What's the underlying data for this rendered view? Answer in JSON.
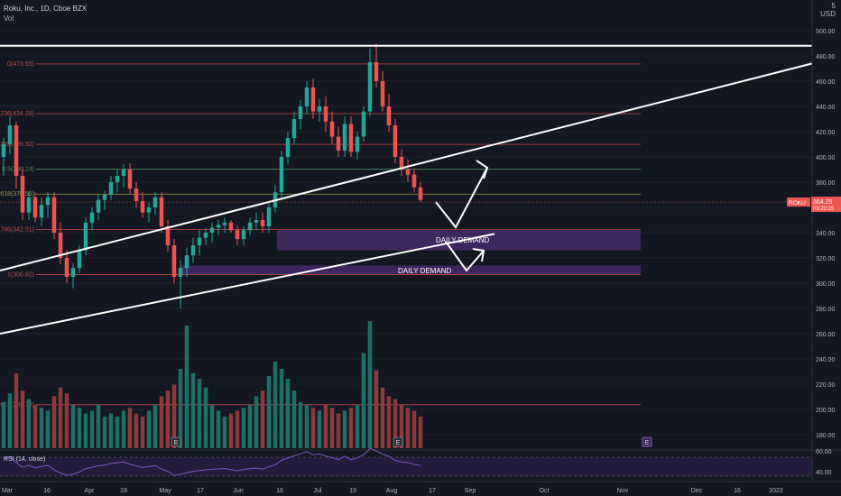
{
  "header": {
    "title": "Roku, Inc., 1D, Cboe BZX",
    "vol_label": "Vol"
  },
  "scale_top": {
    "digit": "5",
    "currency": "USD"
  },
  "colors": {
    "bg": "#131722",
    "up": "#26a69a",
    "down": "#ef5350",
    "vol_up": "#1f6f68",
    "vol_down": "#8c3a3a",
    "fib_red": "#c44a4a",
    "fib_green": "#4f8a5e",
    "fib_yellow": "#9e9a4a",
    "demand_zone": "#4a2a6e",
    "rsi_line": "#7e57c2",
    "rsi_band": "#2a1f45",
    "grid": "#1e222d",
    "text": "#b2b5be",
    "white": "#ffffff"
  },
  "chart_data": {
    "type": "candlestick",
    "symbol": "ROKU",
    "last_price": "364.25",
    "countdown": "03:23:25",
    "price_axis": {
      "ticks": [
        "500.00",
        "480.00",
        "460.00",
        "440.00",
        "420.00",
        "400.00",
        "380.00",
        "360.00",
        "340.00",
        "320.00",
        "300.00",
        "280.00",
        "260.00",
        "240.00",
        "220.00",
        "200.00",
        "180.00"
      ],
      "range": [
        174,
        505
      ]
    },
    "rsi": {
      "label": "RSI (14, close)",
      "ticks": [
        "60.00",
        "40.00"
      ]
    },
    "time_axis": [
      "Mar",
      "16",
      "Apr",
      "19",
      "May",
      "17",
      "Jun",
      "16",
      "Jul",
      "19",
      "Aug",
      "17",
      "Sep",
      "Oct",
      "Nov",
      "Dec",
      "16",
      "2022"
    ],
    "fib_levels": [
      {
        "label": "0(473.65)",
        "value": 473.65,
        "color": "red"
      },
      {
        "label": "0.236(434.28)",
        "value": 434.28,
        "color": "red"
      },
      {
        "label": "0.382(409.92)",
        "value": 409.92,
        "color": "red"
      },
      {
        "label": "0.5(390.24)",
        "value": 390.24,
        "color": "green"
      },
      {
        "label": "0.618(370.55)",
        "value": 370.55,
        "color": "yellow"
      },
      {
        "label": "0.786(342.51)",
        "value": 342.51,
        "color": "red"
      },
      {
        "label": "1(306.82)",
        "value": 306.82,
        "color": "red"
      },
      {
        "label": "1.618(203.72)",
        "value": 203.72,
        "color": "red"
      }
    ],
    "annotations": [
      "DAILY DEMAND",
      "DAILY DEMAND"
    ],
    "event_badges": [
      "E",
      "E",
      "E"
    ],
    "candles": [
      [
        400,
        415,
        385,
        410
      ],
      [
        410,
        432,
        402,
        425
      ],
      [
        425,
        428,
        375,
        385
      ],
      [
        385,
        392,
        350,
        356
      ],
      [
        356,
        372,
        350,
        368
      ],
      [
        368,
        372,
        348,
        352
      ],
      [
        352,
        368,
        345,
        362
      ],
      [
        362,
        372,
        352,
        368
      ],
      [
        368,
        372,
        335,
        340
      ],
      [
        340,
        348,
        315,
        320
      ],
      [
        320,
        326,
        300,
        305
      ],
      [
        305,
        316,
        296,
        312
      ],
      [
        312,
        330,
        308,
        326
      ],
      [
        326,
        352,
        322,
        348
      ],
      [
        348,
        360,
        342,
        356
      ],
      [
        356,
        370,
        350,
        366
      ],
      [
        366,
        373,
        358,
        370
      ],
      [
        370,
        385,
        366,
        380
      ],
      [
        380,
        390,
        372,
        385
      ],
      [
        385,
        394,
        376,
        390
      ],
      [
        390,
        395,
        370,
        375
      ],
      [
        375,
        380,
        360,
        365
      ],
      [
        365,
        372,
        352,
        356
      ],
      [
        356,
        364,
        348,
        360
      ],
      [
        360,
        372,
        354,
        368
      ],
      [
        368,
        372,
        340,
        345
      ],
      [
        345,
        350,
        325,
        330
      ],
      [
        330,
        335,
        300,
        305
      ],
      [
        305,
        318,
        280,
        312
      ],
      [
        312,
        328,
        305,
        322
      ],
      [
        322,
        336,
        316,
        330
      ],
      [
        330,
        342,
        322,
        336
      ],
      [
        336,
        344,
        330,
        340
      ],
      [
        340,
        348,
        332,
        344
      ],
      [
        344,
        350,
        338,
        346
      ],
      [
        346,
        352,
        340,
        348
      ],
      [
        348,
        350,
        340,
        342
      ],
      [
        342,
        346,
        330,
        335
      ],
      [
        335,
        345,
        330,
        342
      ],
      [
        342,
        352,
        338,
        348
      ],
      [
        348,
        356,
        342,
        350
      ],
      [
        350,
        356,
        340,
        345
      ],
      [
        345,
        364,
        340,
        360
      ],
      [
        360,
        378,
        356,
        372
      ],
      [
        372,
        405,
        368,
        400
      ],
      [
        400,
        420,
        394,
        415
      ],
      [
        415,
        436,
        410,
        430
      ],
      [
        430,
        445,
        422,
        440
      ],
      [
        440,
        460,
        434,
        455
      ],
      [
        455,
        462,
        430,
        436
      ],
      [
        436,
        446,
        428,
        440
      ],
      [
        440,
        448,
        420,
        428
      ],
      [
        428,
        436,
        410,
        416
      ],
      [
        416,
        424,
        400,
        405
      ],
      [
        405,
        432,
        400,
        426
      ],
      [
        426,
        432,
        400,
        404
      ],
      [
        404,
        420,
        398,
        416
      ],
      [
        416,
        440,
        412,
        436
      ],
      [
        436,
        486,
        432,
        475
      ],
      [
        475,
        490,
        455,
        460
      ],
      [
        460,
        468,
        436,
        440
      ],
      [
        440,
        450,
        420,
        425
      ],
      [
        425,
        430,
        395,
        400
      ],
      [
        400,
        406,
        385,
        390
      ],
      [
        390,
        398,
        380,
        386
      ],
      [
        386,
        390,
        372,
        376
      ],
      [
        376,
        380,
        364,
        366
      ]
    ],
    "volumes": [
      0.32,
      0.38,
      0.52,
      0.4,
      0.34,
      0.3,
      0.28,
      0.26,
      0.36,
      0.42,
      0.38,
      0.3,
      0.28,
      0.24,
      0.26,
      0.3,
      0.22,
      0.24,
      0.22,
      0.26,
      0.28,
      0.24,
      0.22,
      0.26,
      0.3,
      0.36,
      0.4,
      0.44,
      0.55,
      0.85,
      0.52,
      0.48,
      0.42,
      0.3,
      0.26,
      0.22,
      0.24,
      0.26,
      0.28,
      0.3,
      0.36,
      0.4,
      0.5,
      0.6,
      0.55,
      0.48,
      0.4,
      0.32,
      0.3,
      0.28,
      0.26,
      0.3,
      0.28,
      0.24,
      0.26,
      0.28,
      0.3,
      0.66,
      0.88,
      0.54,
      0.42,
      0.36,
      0.34,
      0.3,
      0.28,
      0.26,
      0.22
    ]
  }
}
